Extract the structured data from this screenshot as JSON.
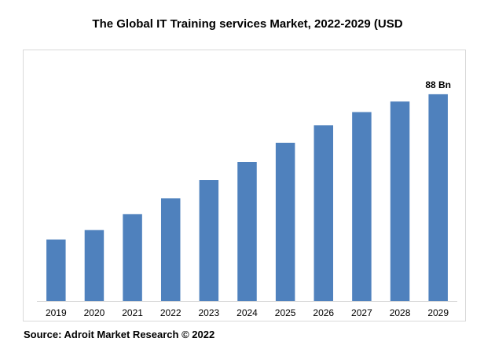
{
  "title": "The Global IT Training services Market, 2022-2029 (USD",
  "source": "Source: Adroit Market Research © 2022",
  "colors": {
    "bar": "#4f81bd",
    "frame": "#d9d9d9",
    "axis": "#d9d9d9"
  },
  "chart_data": {
    "type": "bar",
    "title": "The Global IT Training services Market, 2022-2029 (USD",
    "categories": [
      "2019",
      "2020",
      "2021",
      "2022",
      "2023",
      "2024",
      "2025",
      "2026",
      "2027",
      "2028",
      "2029"
    ],
    "values": [
      26.2,
      30.2,
      37.0,
      43.7,
      51.5,
      59.2,
      67.3,
      74.8,
      80.4,
      84.9,
      88.0
    ],
    "value_unit": "Bn",
    "data_labels": [
      {
        "category": "2029",
        "text": "88 Bn"
      }
    ],
    "xlabel": "",
    "ylabel": "",
    "ylim": [
      0,
      89.3
    ],
    "grid": false,
    "legend": "none"
  }
}
